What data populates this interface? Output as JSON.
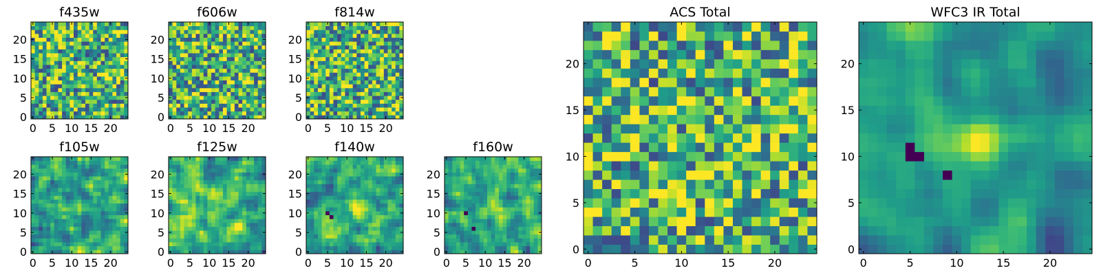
{
  "chart_data": {
    "type": "heatmap",
    "colormap": "viridis",
    "grid": "25x25 pixel cutouts",
    "panels": [
      {
        "title": "f435w",
        "seed": 11,
        "smooth": 0,
        "blob": 0.0,
        "holes": [],
        "xticks": [
          0,
          5,
          10,
          15,
          20
        ],
        "yticks": [
          0,
          5,
          10,
          15,
          20
        ],
        "xlim": [
          -0.5,
          24.5
        ],
        "ylim": [
          -0.5,
          24.5
        ]
      },
      {
        "title": "f606w",
        "seed": 23,
        "smooth": 0,
        "blob": 0.0,
        "holes": [],
        "xticks": [
          0,
          5,
          10,
          15,
          20
        ],
        "yticks": [
          0,
          5,
          10,
          15,
          20
        ],
        "xlim": [
          -0.5,
          24.5
        ],
        "ylim": [
          -0.5,
          24.5
        ]
      },
      {
        "title": "f814w",
        "seed": 37,
        "smooth": 0,
        "blob": 0.0,
        "holes": [],
        "xticks": [
          0,
          5,
          10,
          15,
          20
        ],
        "yticks": [
          0,
          5,
          10,
          15,
          20
        ],
        "xlim": [
          -0.5,
          24.5
        ],
        "ylim": [
          -0.5,
          24.5
        ]
      },
      {
        "title": "f105w",
        "seed": 41,
        "smooth": 1,
        "blob": 0.1,
        "holes": [],
        "xticks": [
          0,
          5,
          10,
          15,
          20
        ],
        "yticks": [
          0,
          5,
          10,
          15,
          20
        ],
        "xlim": [
          -0.5,
          24.5
        ],
        "ylim": [
          -0.5,
          24.5
        ]
      },
      {
        "title": "f125w",
        "seed": 53,
        "smooth": 1,
        "blob": 0.1,
        "holes": [],
        "xticks": [
          0,
          5,
          10,
          15,
          20
        ],
        "yticks": [
          0,
          5,
          10,
          15,
          20
        ],
        "xlim": [
          -0.5,
          24.5
        ],
        "ylim": [
          -0.5,
          24.5
        ]
      },
      {
        "title": "f140w",
        "seed": 67,
        "smooth": 1,
        "blob": 0.3,
        "holes": [
          [
            5,
            10
          ],
          [
            6,
            9
          ]
        ],
        "xticks": [
          0,
          5,
          10,
          15,
          20
        ],
        "yticks": [
          0,
          5,
          10,
          15,
          20
        ],
        "xlim": [
          -0.5,
          24.5
        ],
        "ylim": [
          -0.5,
          24.5
        ]
      },
      {
        "title": "f160w",
        "seed": 79,
        "smooth": 1,
        "blob": 0.3,
        "holes": [
          [
            5,
            10
          ],
          [
            7,
            6
          ]
        ],
        "xticks": [
          0,
          5,
          10,
          15,
          20
        ],
        "yticks": [
          0,
          5,
          10,
          15,
          20
        ],
        "xlim": [
          -0.5,
          24.5
        ],
        "ylim": [
          -0.5,
          24.5
        ]
      },
      {
        "title": "ACS Total",
        "seed": 97,
        "smooth": 0,
        "blob": 0.0,
        "holes": [],
        "xticks": [
          0,
          5,
          10,
          15,
          20
        ],
        "yticks": [
          0,
          5,
          10,
          15,
          20
        ],
        "xlim": [
          -0.5,
          24.5
        ],
        "ylim": [
          -0.5,
          24.5
        ]
      },
      {
        "title": "WFC3 IR Total",
        "seed": 131,
        "smooth": 2,
        "blob": 0.6,
        "holes": [
          [
            5,
            10
          ],
          [
            5,
            11
          ],
          [
            6,
            10
          ],
          [
            9,
            8
          ]
        ],
        "xticks": [
          0,
          5,
          10,
          15,
          20
        ],
        "yticks": [
          0,
          5,
          10,
          15,
          20
        ],
        "xlim": [
          -0.5,
          24.5
        ],
        "ylim": [
          -0.5,
          24.5
        ]
      }
    ]
  },
  "colors": {
    "viridis": [
      "#440154",
      "#482878",
      "#3e4989",
      "#31688e",
      "#26828e",
      "#1f9e89",
      "#35b779",
      "#6ece58",
      "#b5de2b",
      "#fde725"
    ]
  }
}
